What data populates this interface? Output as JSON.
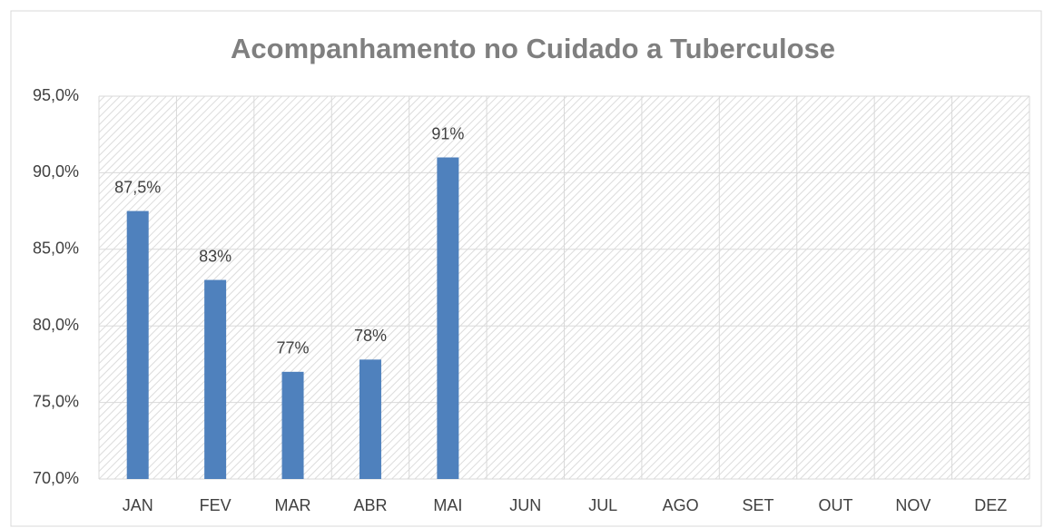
{
  "chart_data": {
    "type": "bar",
    "title": "Acompanhamento no Cuidado a Tuberculose",
    "categories": [
      "JAN",
      "FEV",
      "MAR",
      "ABR",
      "MAI",
      "JUN",
      "JUL",
      "AGO",
      "SET",
      "OUT",
      "NOV",
      "DEZ"
    ],
    "values": [
      87.5,
      83,
      77,
      77.8,
      91,
      null,
      null,
      null,
      null,
      null,
      null,
      null
    ],
    "value_labels": [
      "87,5%",
      "83%",
      "77%",
      "78%",
      "91%",
      null,
      null,
      null,
      null,
      null,
      null,
      null
    ],
    "color": "#4f81bd",
    "ylim": [
      70,
      95
    ],
    "yticks": [
      {
        "value": 70,
        "label": "70,0%"
      },
      {
        "value": 75,
        "label": "75,0%"
      },
      {
        "value": 80,
        "label": "80,0%"
      },
      {
        "value": 85,
        "label": "85,0%"
      },
      {
        "value": 90,
        "label": "90,0%"
      },
      {
        "value": 95,
        "label": "95,0%"
      }
    ],
    "grid": true
  }
}
